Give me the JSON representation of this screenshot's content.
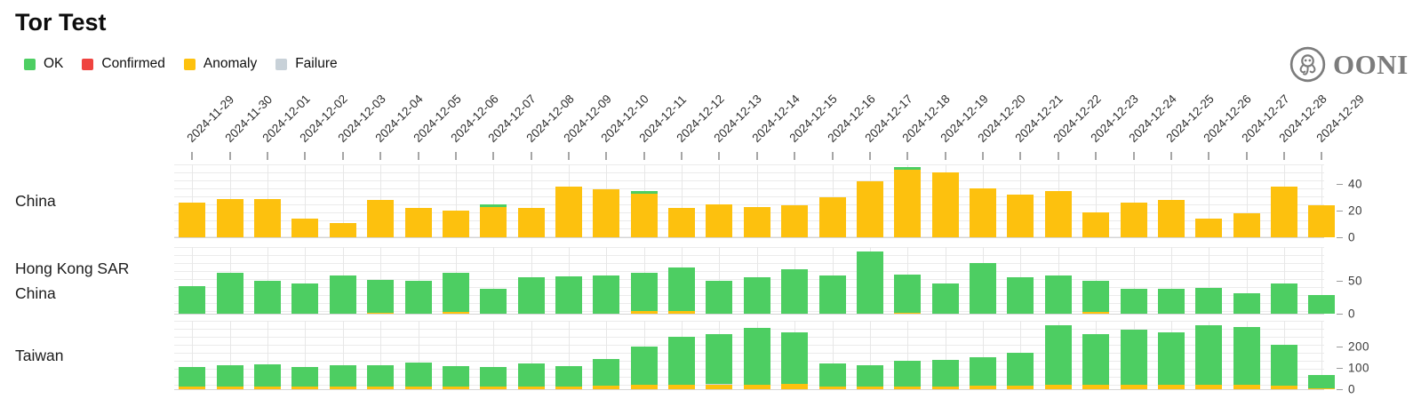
{
  "header": {
    "title": "Tor Test",
    "logo_text": "OONI"
  },
  "legend": [
    {
      "key": "ok",
      "label": "OK",
      "color": "#4dce62"
    },
    {
      "key": "confirmed",
      "label": "Confirmed",
      "color": "#ef433f"
    },
    {
      "key": "anomaly",
      "label": "Anomaly",
      "color": "#fdc10e"
    },
    {
      "key": "failure",
      "label": "Failure",
      "color": "#c8d1d8"
    }
  ],
  "chart_data": {
    "type": "bar",
    "stacked": true,
    "stack_order": [
      "confirmed",
      "anomaly",
      "failure",
      "ok"
    ],
    "title": "Tor Test",
    "legend_position": "top-left",
    "grid": true,
    "colors": {
      "ok": "#4dce62",
      "confirmed": "#ef433f",
      "anomaly": "#fdc10e",
      "failure": "#c8d1d8"
    },
    "x": [
      "2024-11-29",
      "2024-11-30",
      "2024-12-01",
      "2024-12-02",
      "2024-12-03",
      "2024-12-04",
      "2024-12-05",
      "2024-12-06",
      "2024-12-07",
      "2024-12-08",
      "2024-12-09",
      "2024-12-10",
      "2024-12-11",
      "2024-12-12",
      "2024-12-13",
      "2024-12-14",
      "2024-12-15",
      "2024-12-16",
      "2024-12-17",
      "2024-12-18",
      "2024-12-19",
      "2024-12-20",
      "2024-12-21",
      "2024-12-22",
      "2024-12-23",
      "2024-12-24",
      "2024-12-25",
      "2024-12-26",
      "2024-12-27",
      "2024-12-28",
      "2024-12-29"
    ],
    "rows": [
      {
        "label": "China",
        "label_lines": [
          "China"
        ],
        "ymax": 55,
        "yticks": [
          0,
          20,
          40
        ],
        "series": {
          "confirmed": [
            0,
            0,
            0,
            0,
            0,
            0,
            0,
            0,
            0,
            0,
            0,
            0,
            0,
            0,
            0,
            0,
            0,
            0,
            0,
            0,
            0,
            0,
            0,
            0,
            0,
            0,
            0,
            0,
            0,
            0,
            0
          ],
          "anomaly": [
            26,
            29,
            29,
            14,
            11,
            28,
            22,
            20,
            23,
            22,
            38,
            36,
            33,
            22,
            25,
            23,
            24,
            30,
            42,
            51,
            49,
            37,
            32,
            35,
            19,
            26,
            28,
            14,
            18,
            38,
            24
          ],
          "failure": [
            0,
            0,
            0,
            0,
            0,
            0,
            0,
            0,
            0,
            0,
            0,
            0,
            0,
            0,
            0,
            0,
            0,
            0,
            0,
            0,
            0,
            0,
            0,
            0,
            0,
            0,
            0,
            0,
            0,
            0,
            0
          ],
          "ok": [
            0,
            0,
            0,
            0,
            0,
            0,
            0,
            0,
            2,
            0,
            0,
            0,
            2,
            0,
            0,
            0,
            0,
            0,
            0,
            2,
            0,
            0,
            0,
            0,
            0,
            0,
            0,
            0,
            0,
            0,
            0
          ]
        }
      },
      {
        "label": "Hong Kong SAR China",
        "label_lines": [
          "Hong Kong SAR",
          "China"
        ],
        "ymax": 100,
        "yticks": [
          0,
          50
        ],
        "series": {
          "confirmed": [
            0,
            0,
            0,
            0,
            0,
            0,
            0,
            0,
            0,
            0,
            0,
            0,
            0,
            0,
            0,
            0,
            0,
            0,
            0,
            0,
            0,
            0,
            0,
            0,
            0,
            0,
            0,
            0,
            0,
            0,
            0
          ],
          "anomaly": [
            0,
            0,
            0,
            0,
            0,
            2,
            0,
            3,
            0,
            0,
            0,
            0,
            4,
            4,
            0,
            0,
            0,
            0,
            0,
            2,
            0,
            0,
            0,
            0,
            3,
            0,
            0,
            0,
            0,
            0,
            0
          ],
          "failure": [
            0,
            0,
            0,
            0,
            0,
            0,
            0,
            0,
            0,
            0,
            0,
            0,
            0,
            0,
            0,
            0,
            0,
            0,
            0,
            0,
            0,
            0,
            0,
            0,
            0,
            0,
            0,
            0,
            0,
            0,
            0
          ],
          "ok": [
            41,
            61,
            49,
            45,
            58,
            49,
            50,
            58,
            37,
            55,
            56,
            58,
            58,
            65,
            50,
            55,
            67,
            58,
            93,
            57,
            46,
            76,
            55,
            58,
            47,
            38,
            37,
            39,
            31,
            45,
            28
          ]
        }
      },
      {
        "label": "Taiwan",
        "label_lines": [
          "Taiwan"
        ],
        "ymax": 320,
        "yticks": [
          0,
          100,
          200
        ],
        "series": {
          "confirmed": [
            0,
            0,
            0,
            0,
            0,
            0,
            0,
            0,
            0,
            0,
            0,
            0,
            0,
            0,
            0,
            0,
            0,
            0,
            0,
            0,
            0,
            0,
            0,
            0,
            0,
            0,
            0,
            0,
            0,
            0,
            0
          ],
          "anomaly": [
            14,
            14,
            14,
            14,
            14,
            14,
            14,
            14,
            14,
            14,
            14,
            16,
            20,
            20,
            20,
            20,
            25,
            14,
            14,
            14,
            14,
            16,
            16,
            20,
            20,
            20,
            20,
            20,
            20,
            16,
            6
          ],
          "failure": [
            0,
            0,
            0,
            0,
            0,
            0,
            0,
            0,
            0,
            0,
            0,
            0,
            0,
            0,
            4,
            0,
            0,
            0,
            0,
            0,
            0,
            0,
            0,
            0,
            0,
            0,
            0,
            0,
            0,
            0,
            0
          ],
          "ok": [
            88,
            99,
            101,
            92,
            99,
            99,
            110,
            96,
            90,
            107,
            96,
            124,
            178,
            227,
            234,
            268,
            239,
            106,
            99,
            118,
            123,
            135,
            154,
            278,
            238,
            260,
            244,
            278,
            271,
            193,
            59
          ]
        }
      }
    ]
  }
}
